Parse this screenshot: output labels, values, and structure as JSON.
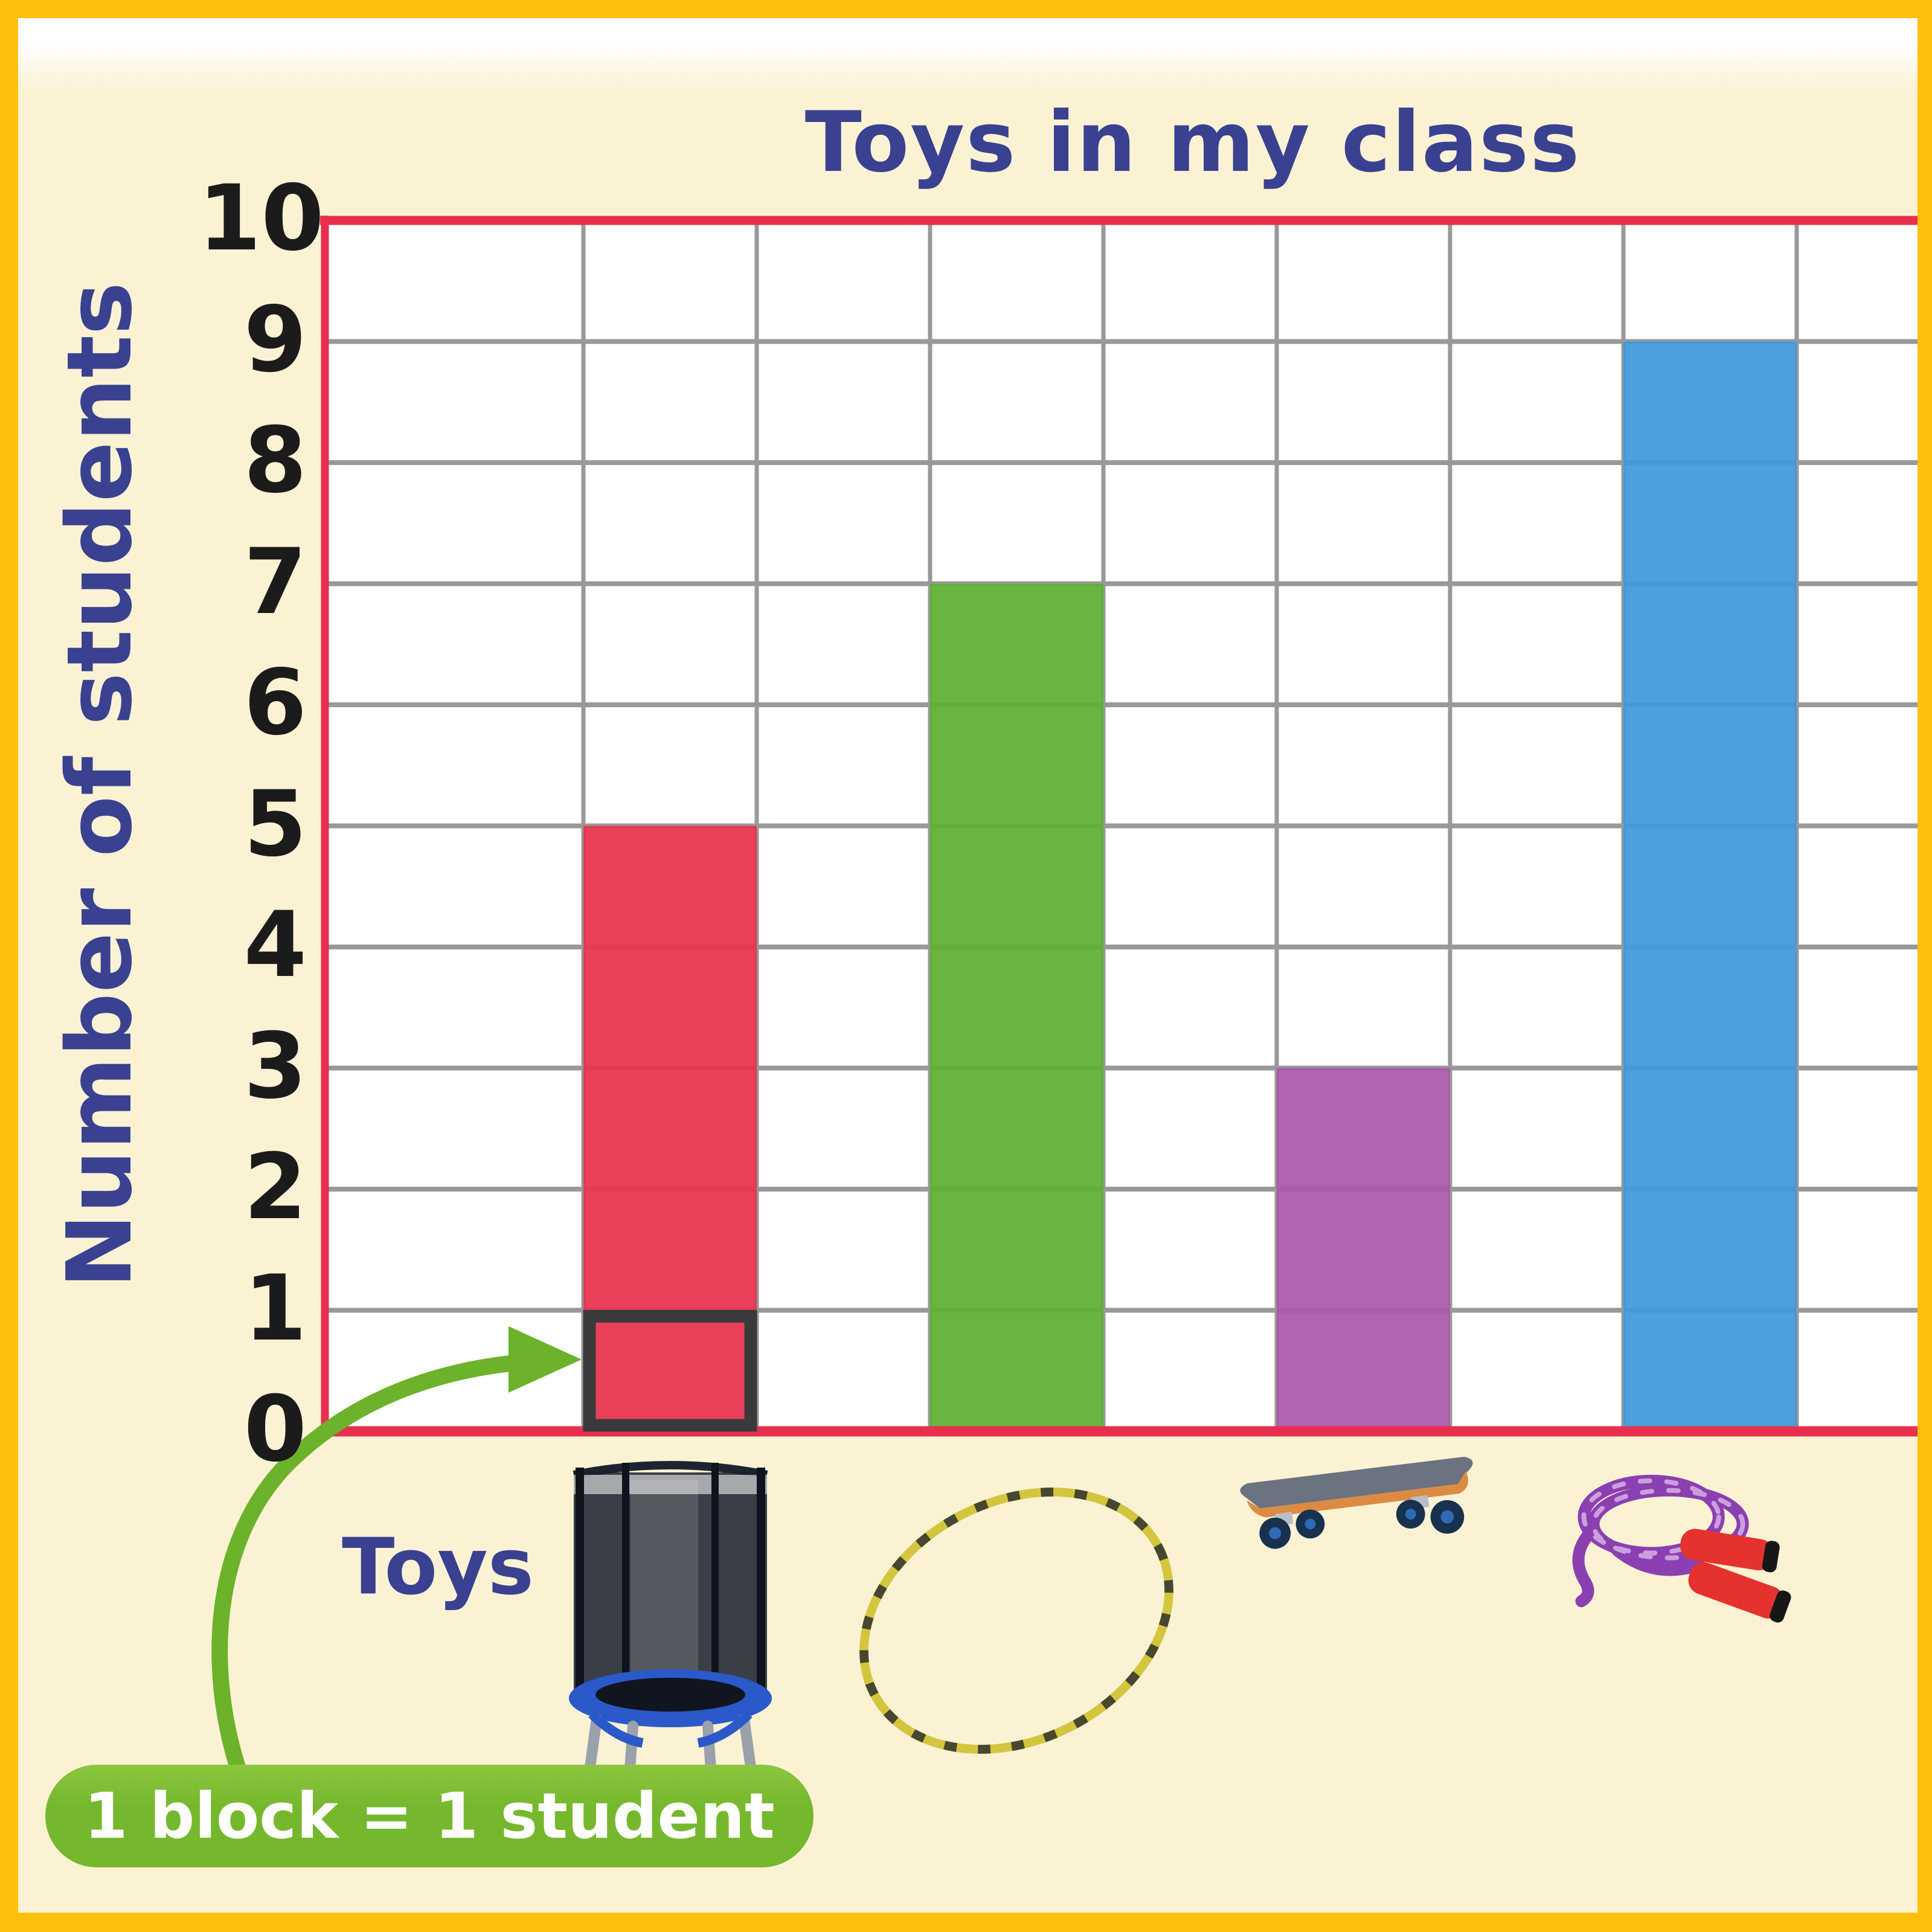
{
  "chart_data": {
    "type": "bar",
    "title": "Toys in my class",
    "ylabel": "Number of students",
    "xlabel": "Toys",
    "categories": [
      "trampoline",
      "hula hoop",
      "skateboard",
      "jump rope"
    ],
    "values": [
      5,
      7,
      3,
      9
    ],
    "ylim": [
      0,
      10
    ],
    "yticks": [
      0,
      1,
      2,
      3,
      4,
      5,
      6,
      7,
      8,
      9,
      10
    ],
    "grid": true,
    "legend": "none",
    "bar_colors": [
      "#E8314E",
      "#5FAF33",
      "#AA57A9",
      "#3E99D9"
    ],
    "plot_border_color": "#E8304E",
    "grid_color": "#999999",
    "plot_background": "#FFFFFF",
    "page_background": "#FAF2D3",
    "frame_color": "#FEC00D",
    "text_color": "#3A4191",
    "tick_color": "#1B1B1B",
    "highlight": {
      "category": "trampoline",
      "block_value": 1,
      "outline_color": "#3A3A3C"
    },
    "annotation": {
      "text": "1 block = 1 student",
      "badge_color": "#77B82D",
      "arrow_color": "#6CB22B",
      "text_color": "#FFFFFF"
    }
  }
}
